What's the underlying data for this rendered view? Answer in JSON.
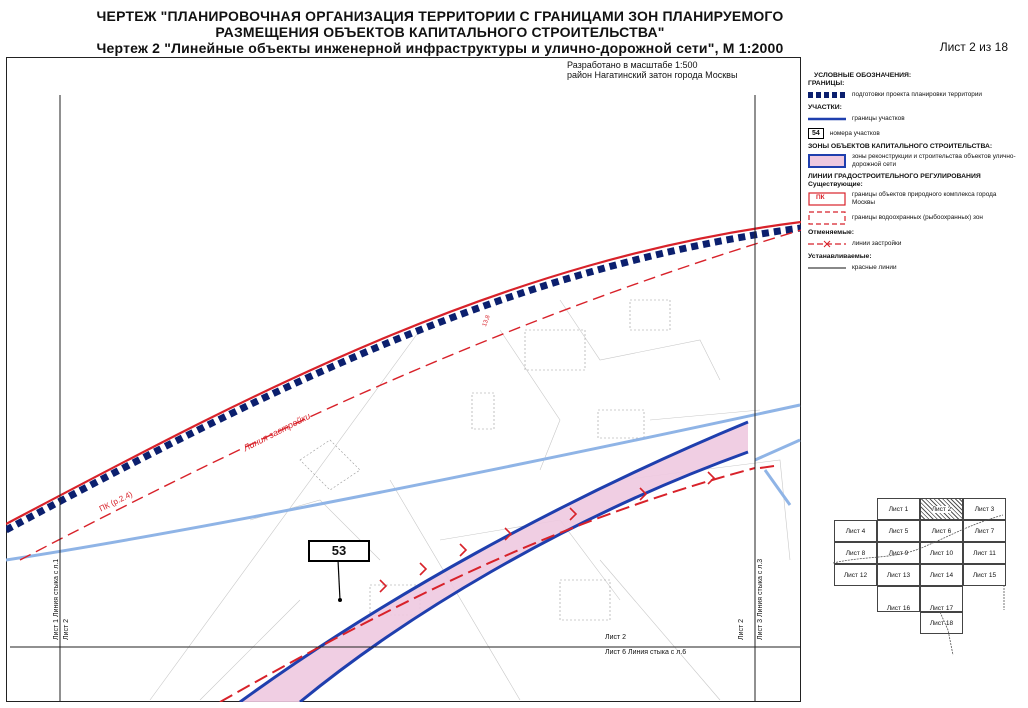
{
  "header": {
    "title_line1": "ЧЕРТЕЖ \"ПЛАНИРОВОЧНАЯ ОРГАНИЗАЦИЯ ТЕРРИТОРИИ С ГРАНИЦАМИ ЗОН ПЛАНИРУЕМОГО",
    "title_line2": "РАЗМЕЩЕНИЯ ОБЪЕКТОВ КАПИТАЛЬНОГО СТРОИТЕЛЬСТВА\"",
    "title_line3": "Чертеж 2 \"Линейные объекты инженерной инфраструктуры и улично-дорожной сети\", М 1:2000",
    "sheet_counter": "Лист 2 из 18"
  },
  "dev_note": {
    "line1": "Разработано в масштабе 1:500",
    "line2": "район Нагатинский затон города Москвы"
  },
  "legend": {
    "title": "УСЛОВНЫЕ ОБОЗНАЧЕНИЯ:",
    "boundaries_header": "ГРАНИЦЫ:",
    "boundary_project": "подготовки проекта планировки территории",
    "plots_header": "УЧАСТКИ:",
    "plot_boundaries": "границы участков",
    "plot_number_symbol": "54",
    "plot_numbers": "номера участков",
    "zones_header": "ЗОНЫ ОБЪЕКТОВ КАПИТАЛЬНОГО СТРОИТЕЛЬСТВА:",
    "zone_text": "зоны реконструкции и строительства объектов улично-дорожной сети",
    "lines_header": "ЛИНИИ ГРАДОСТРОИТЕЛЬНОГО РЕГУЛИРОВАНИЯ",
    "existing_header": "Существующие:",
    "pk_symbol": "ПК",
    "natural_complex": "границы объектов природного комплекса города Москвы",
    "water_protection": "границы водоохранных (рыбоохранных) зон",
    "cancelled_header": "Отменяемые:",
    "building_lines": "линии застройки",
    "established_header": "Устанавливаемые:",
    "red_lines": "красные линии"
  },
  "map": {
    "parcel_number": "53",
    "pk_label": "ПК (р.2.4)",
    "building_line_label": "Линия застройки",
    "small_label": "13,8",
    "sheet2_label": "Лист 2",
    "sheet6_label": "Лист 6 Линия стыка с л.6",
    "left_junction": "Лист 1 Линия стыка с л.1",
    "left_sheet2": "Лист 2",
    "right_junction": "Лист 3 Линия стыка с л.3",
    "right_sheet2": "Лист 2"
  },
  "colors": {
    "red_line": "#d8222a",
    "navy_boundary": "#0b1f6e",
    "blue_line": "#1f3fae",
    "zone_fill": "#eec9e0",
    "light_blue": "#8fb4e6"
  },
  "sheet_index": [
    {
      "label": "Лист 1"
    },
    {
      "label": "Лист 2"
    },
    {
      "label": "Лист 3"
    },
    {
      "label": "Лист 4"
    },
    {
      "label": "Лист 5"
    },
    {
      "label": "Лист 6"
    },
    {
      "label": "Лист 7"
    },
    {
      "label": "Лист 8"
    },
    {
      "label": "Лист 9"
    },
    {
      "label": "Лист 10"
    },
    {
      "label": "Лист 11"
    },
    {
      "label": "Лист 12"
    },
    {
      "label": "Лист 13"
    },
    {
      "label": "Лист 14"
    },
    {
      "label": "Лист 15"
    },
    {
      "label": "Лист 16"
    },
    {
      "label": "Лист 17"
    },
    {
      "label": "Лист 18"
    }
  ]
}
